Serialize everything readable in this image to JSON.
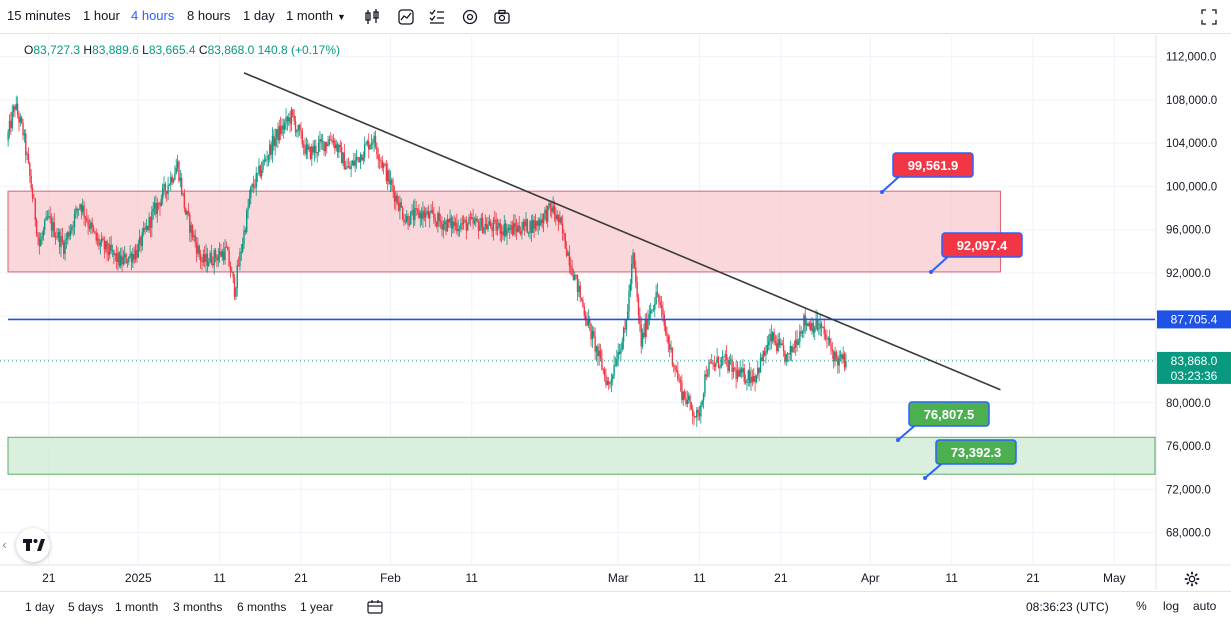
{
  "toolbar": {
    "timeframes": [
      "15 minutes",
      "1 hour",
      "4 hours",
      "8 hours",
      "1 day",
      "1 month"
    ],
    "active_timeframe": "4 hours",
    "icons": [
      "candles-icon",
      "indicators-icon",
      "alerts-icon",
      "settings-icon",
      "snapshot-icon",
      "fullscreen-icon"
    ]
  },
  "ohlc": {
    "o_key": "O",
    "o": "83,727.3",
    "h_key": "H",
    "h": "83,889.6",
    "l_key": "L",
    "l": "83,665.4",
    "c_key": "C",
    "c": "83,868.0",
    "change": "140.8 (+0.17%)"
  },
  "colors": {
    "up": "#089981",
    "down": "#f23645",
    "resistance_zone": "#f8c9cd",
    "support_zone": "#d4ecd7",
    "level_line": "#1e53e5",
    "trend_line": "#3a3a3a",
    "red_label": "#f23645",
    "green_label": "#4caf50"
  },
  "chart_data": {
    "type": "candlestick",
    "y_axis": {
      "ylim": [
        65000,
        114000
      ],
      "ticks": [
        112000,
        108000,
        104000,
        100000,
        96000,
        92000,
        88000,
        84000,
        80000,
        76000,
        72000,
        68000
      ],
      "tick_labels": [
        "112,000.0",
        "108,000.0",
        "104,000.0",
        "100,000.0",
        "96,000.0",
        "92,000.0",
        "88,000.0",
        "84,000.0",
        "80,000.0",
        "76,000.0",
        "72,000.0",
        "68,000.0"
      ]
    },
    "x_axis": {
      "xlim": [
        "2024-12-15",
        "2025-05-06"
      ],
      "ticks": [
        "2024-12-21",
        "2025-01-01",
        "2025-01-11",
        "2025-01-21",
        "2025-02-01",
        "2025-02-11",
        "2025-03-01",
        "2025-03-11",
        "2025-03-21",
        "2025-04-01",
        "2025-04-11",
        "2025-04-21",
        "2025-05-01"
      ],
      "tick_labels": [
        "21",
        "2025",
        "11",
        "21",
        "Feb",
        "11",
        "Mar",
        "11",
        "21",
        "Apr",
        "11",
        "21",
        "May"
      ]
    },
    "price_path": [
      [
        "2024-12-15",
        101000
      ],
      [
        "2024-12-17",
        107500
      ],
      [
        "2024-12-18",
        105000
      ],
      [
        "2024-12-19",
        100000
      ],
      [
        "2024-12-20",
        94500
      ],
      [
        "2024-12-21",
        97000
      ],
      [
        "2024-12-23",
        94500
      ],
      [
        "2024-12-25",
        98500
      ],
      [
        "2024-12-27",
        95000
      ],
      [
        "2024-12-30",
        93000
      ],
      [
        "2025-01-01",
        94000
      ],
      [
        "2025-01-03",
        97500
      ],
      [
        "2025-01-06",
        102000
      ],
      [
        "2025-01-07",
        97500
      ],
      [
        "2025-01-09",
        93000
      ],
      [
        "2025-01-12",
        94000
      ],
      [
        "2025-01-13",
        90500
      ],
      [
        "2025-01-15",
        99500
      ],
      [
        "2025-01-18",
        104500
      ],
      [
        "2025-01-20",
        106500
      ],
      [
        "2025-01-22",
        103000
      ],
      [
        "2025-01-25",
        104500
      ],
      [
        "2025-01-27",
        101500
      ],
      [
        "2025-01-30",
        104500
      ],
      [
        "2025-02-01",
        100500
      ],
      [
        "2025-02-03",
        97000
      ],
      [
        "2025-02-05",
        97500
      ],
      [
        "2025-02-08",
        96500
      ],
      [
        "2025-02-12",
        96500
      ],
      [
        "2025-02-16",
        96000
      ],
      [
        "2025-02-19",
        96500
      ],
      [
        "2025-02-21",
        98000
      ],
      [
        "2025-02-22",
        96500
      ],
      [
        "2025-02-25",
        88500
      ],
      [
        "2025-02-26",
        86000
      ],
      [
        "2025-02-28",
        81500
      ],
      [
        "2025-03-01",
        84500
      ],
      [
        "2025-03-02",
        86500
      ],
      [
        "2025-03-03",
        93500
      ],
      [
        "2025-03-04",
        85500
      ],
      [
        "2025-03-05",
        88500
      ],
      [
        "2025-03-06",
        90000
      ],
      [
        "2025-03-07",
        86500
      ],
      [
        "2025-03-09",
        81000
      ],
      [
        "2025-03-11",
        78500
      ],
      [
        "2025-03-12",
        83000
      ],
      [
        "2025-03-14",
        84000
      ],
      [
        "2025-03-16",
        82500
      ],
      [
        "2025-03-18",
        82500
      ],
      [
        "2025-03-20",
        86000
      ],
      [
        "2025-03-22",
        84000
      ],
      [
        "2025-03-24",
        87500
      ],
      [
        "2025-03-26",
        87000
      ],
      [
        "2025-03-28",
        84000
      ],
      [
        "2025-03-29",
        83868
      ]
    ],
    "last_price": {
      "value": 83868.0,
      "label": "83,868.0",
      "countdown": "03:23:36"
    },
    "horizontal_level": {
      "value": 87705.4,
      "label": "87,705.4"
    },
    "trend_line": {
      "start": [
        "2025-01-14",
        110500
      ],
      "end": [
        "2025-04-17",
        81200
      ]
    },
    "zones": [
      {
        "kind": "resistance",
        "top": 99561.9,
        "bottom": 92097.4,
        "x_start": "2024-12-15",
        "x_end": "2025-04-17"
      },
      {
        "kind": "support",
        "top": 76807.5,
        "bottom": 73392.3,
        "x_start": "2024-12-15",
        "x_end": "2025-05-06"
      }
    ],
    "price_labels": [
      {
        "text": "99,561.9",
        "value": 99561.9,
        "color": "red"
      },
      {
        "text": "92,097.4",
        "value": 92097.4,
        "color": "red"
      },
      {
        "text": "76,807.5",
        "value": 76807.5,
        "color": "green"
      },
      {
        "text": "73,392.3",
        "value": 73392.3,
        "color": "green"
      }
    ]
  },
  "bottom": {
    "ranges": [
      "1 day",
      "5 days",
      "1 month",
      "3 months",
      "6 months",
      "1 year"
    ],
    "clock": "08:36:23 (UTC)",
    "scale_options": [
      "%",
      "log",
      "auto"
    ]
  }
}
